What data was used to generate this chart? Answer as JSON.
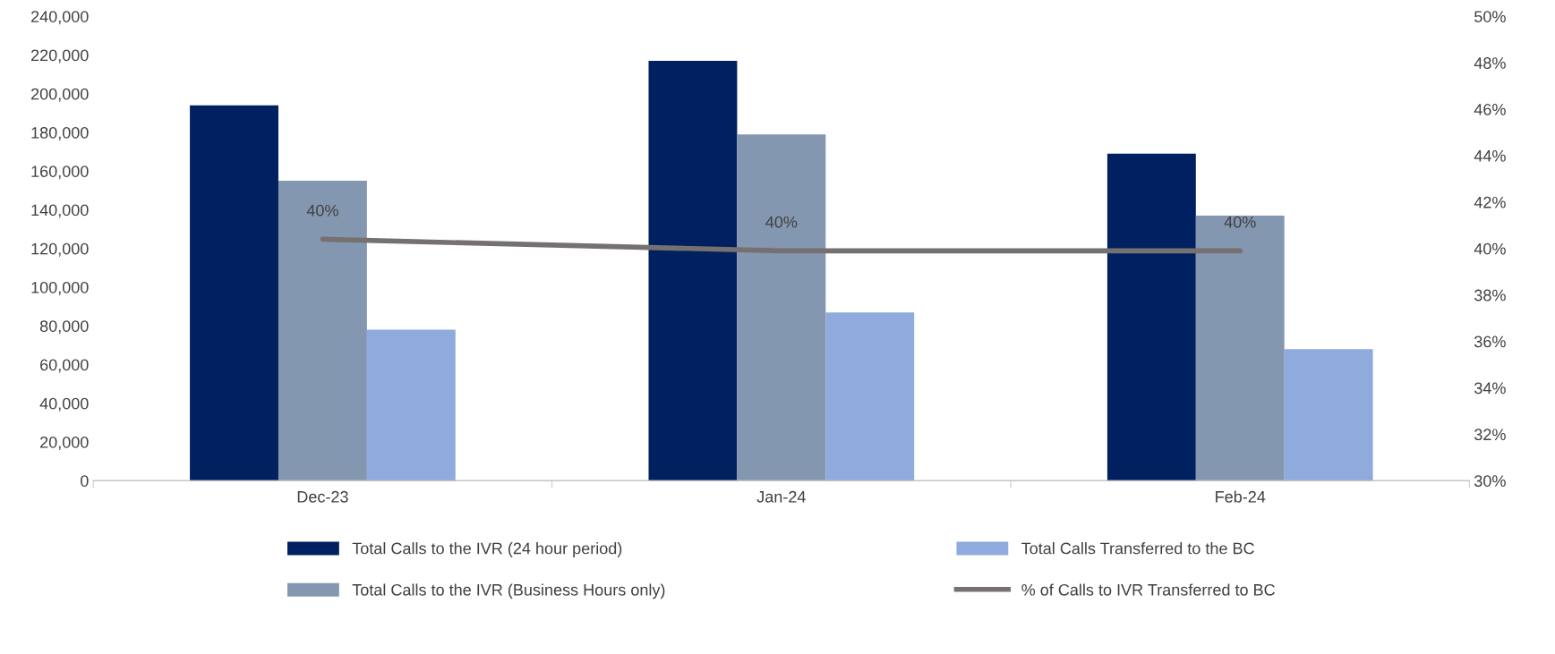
{
  "chart_data": {
    "type": "bar",
    "categories": [
      "Dec-23",
      "Jan-24",
      "Feb-24"
    ],
    "series": [
      {
        "name": "Total Calls to the IVR (24 hour period)",
        "color": "#002060",
        "values": [
          194000,
          217000,
          169000
        ]
      },
      {
        "name": "Total Calls to the IVR (Business Hours only)",
        "color": "#8497b0",
        "values": [
          155000,
          179000,
          137000
        ]
      },
      {
        "name": "Total Calls Transferred to the BC",
        "color": "#8faadc",
        "values": [
          78000,
          87000,
          68000
        ]
      },
      {
        "name": "% of Calls to IVR Transferred to BC",
        "type": "line",
        "axis": "y2",
        "color": "#767171",
        "values": [
          40.4,
          39.9,
          39.9
        ],
        "value_labels": [
          "40%",
          "40%",
          "40%"
        ]
      }
    ],
    "ylim": [
      0,
      240000
    ],
    "yticks": [
      {
        "value": 0,
        "label": "0"
      },
      {
        "value": 20000,
        "label": "20,000"
      },
      {
        "value": 40000,
        "label": "40,000"
      },
      {
        "value": 60000,
        "label": "60,000"
      },
      {
        "value": 80000,
        "label": "80,000"
      },
      {
        "value": 100000,
        "label": "100,000"
      },
      {
        "value": 120000,
        "label": "120,000"
      },
      {
        "value": 140000,
        "label": "140,000"
      },
      {
        "value": 160000,
        "label": "160,000"
      },
      {
        "value": 180000,
        "label": "180,000"
      },
      {
        "value": 200000,
        "label": "200,000"
      },
      {
        "value": 220000,
        "label": "220,000"
      },
      {
        "value": 240000,
        "label": "240,000"
      }
    ],
    "y2lim": [
      30,
      50
    ],
    "y2ticks": [
      {
        "value": 30,
        "label": "30%"
      },
      {
        "value": 32,
        "label": "32%"
      },
      {
        "value": 34,
        "label": "34%"
      },
      {
        "value": 36,
        "label": "36%"
      },
      {
        "value": 38,
        "label": "38%"
      },
      {
        "value": 40,
        "label": "40%"
      },
      {
        "value": 42,
        "label": "42%"
      },
      {
        "value": 44,
        "label": "44%"
      },
      {
        "value": 46,
        "label": "46%"
      },
      {
        "value": 48,
        "label": "48%"
      },
      {
        "value": 50,
        "label": "50%"
      }
    ],
    "grid": false,
    "legend": "bottom"
  }
}
